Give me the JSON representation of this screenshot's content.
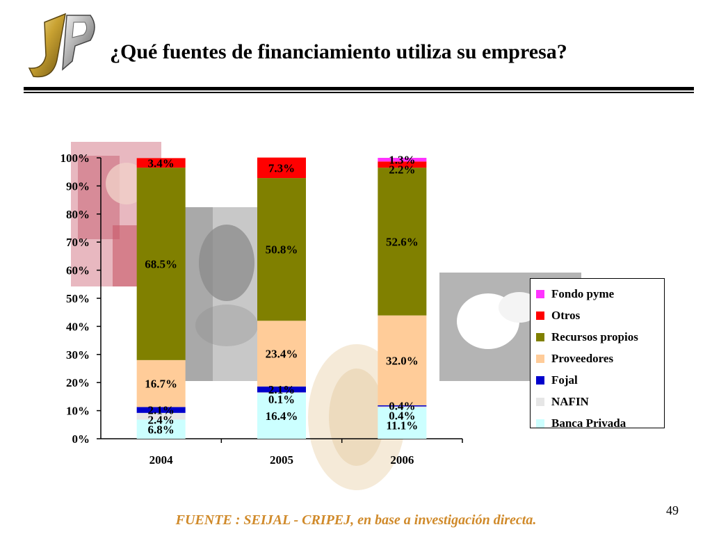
{
  "slide": {
    "title": "¿Qué fuentes de financiamiento utiliza su empresa?",
    "source": "FUENTE :  SEIJAL - CRIPEJ,  en base a investigación directa.",
    "page_number": "49"
  },
  "chart_data": {
    "type": "bar",
    "stacked": true,
    "categories": [
      "2004",
      "2005",
      "2006"
    ],
    "ylim": [
      0,
      100
    ],
    "ytick_labels": [
      "0%",
      "10%",
      "20%",
      "30%",
      "40%",
      "50%",
      "60%",
      "70%",
      "80%",
      "90%",
      "100%"
    ],
    "legend_position": "right",
    "series": [
      {
        "name": "Banca Privada",
        "color": "#ccffff",
        "values": [
          6.8,
          16.4,
          11.1
        ],
        "labels": [
          "6.8%",
          "16.4%",
          "11.1%"
        ]
      },
      {
        "name": "NAFIN",
        "color": "#e6e6e6",
        "values": [
          2.4,
          0.1,
          0.4
        ],
        "labels": [
          "2.4%",
          "0.1%",
          "0.4%"
        ]
      },
      {
        "name": "Fojal",
        "color": "#0000cc",
        "values": [
          2.1,
          2.1,
          0.4
        ],
        "labels": [
          "2.1%",
          "2.1%",
          "0.4%"
        ]
      },
      {
        "name": "Proveedores",
        "color": "#ffcc99",
        "values": [
          16.7,
          23.4,
          32.0
        ],
        "labels": [
          "16.7%",
          "23.4%",
          "32.0%"
        ]
      },
      {
        "name": "Recursos propios",
        "color": "#808000",
        "values": [
          68.5,
          50.8,
          52.6
        ],
        "labels": [
          "68.5%",
          "50.8%",
          "52.6%"
        ]
      },
      {
        "name": "Otros",
        "color": "#ff0000",
        "values": [
          3.4,
          7.3,
          2.2
        ],
        "labels": [
          "3.4%",
          "7.3%",
          "2.2%"
        ]
      },
      {
        "name": "Fondo pyme",
        "color": "#ff33ff",
        "values": [
          0,
          0,
          1.3
        ],
        "labels": [
          "",
          "",
          "1.3%"
        ]
      }
    ],
    "legend_order": [
      "Fondo pyme",
      "Otros",
      "Recursos propios",
      "Proveedores",
      "Fojal",
      "NAFIN",
      "Banca Privada"
    ]
  }
}
